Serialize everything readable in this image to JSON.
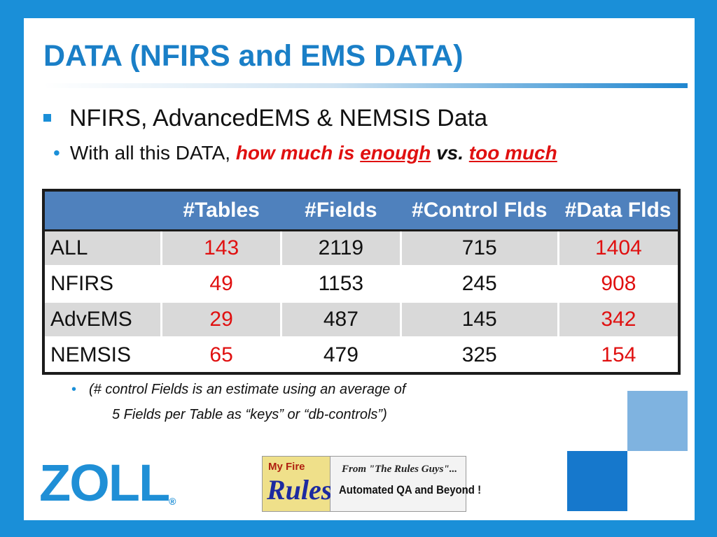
{
  "title": "DATA (NFIRS and EMS DATA)",
  "bullet1": "NFIRS, AdvancedEMS & NEMSIS Data",
  "bullet2": {
    "prefix": "With all this DATA,",
    "part1": "how much is",
    "enough": "enough",
    "vs": "vs.",
    "too_much": "too much"
  },
  "table": {
    "headers": [
      "",
      "#Tables",
      "#Fields",
      "#Control Flds",
      "#Data Flds"
    ],
    "rows": [
      [
        "ALL",
        "143",
        "2119",
        "715",
        "1404"
      ],
      [
        "NFIRS",
        "49",
        "1153",
        "245",
        "908"
      ],
      [
        "AdvEMS",
        "29",
        "487",
        "145",
        "342"
      ],
      [
        "NEMSIS",
        "65",
        "479",
        "325",
        "154"
      ]
    ]
  },
  "note": {
    "line1": "(# control Fields is an estimate using an average of",
    "line2": "5 Fields per Table as “keys” or “db-controls”)"
  },
  "logo": {
    "text": "ZOLL",
    "reg": "®"
  },
  "banner": {
    "my_fire": "My Fire",
    "rules": "Rules",
    "from": "From \"The Rules Guys\"...",
    "tagline": "Automated QA and Beyond !"
  },
  "colors": {
    "accent": "#1a8fd8",
    "header": "#4f81bd",
    "highlight": "#e01010",
    "row_shade": "#d9d9d9"
  }
}
